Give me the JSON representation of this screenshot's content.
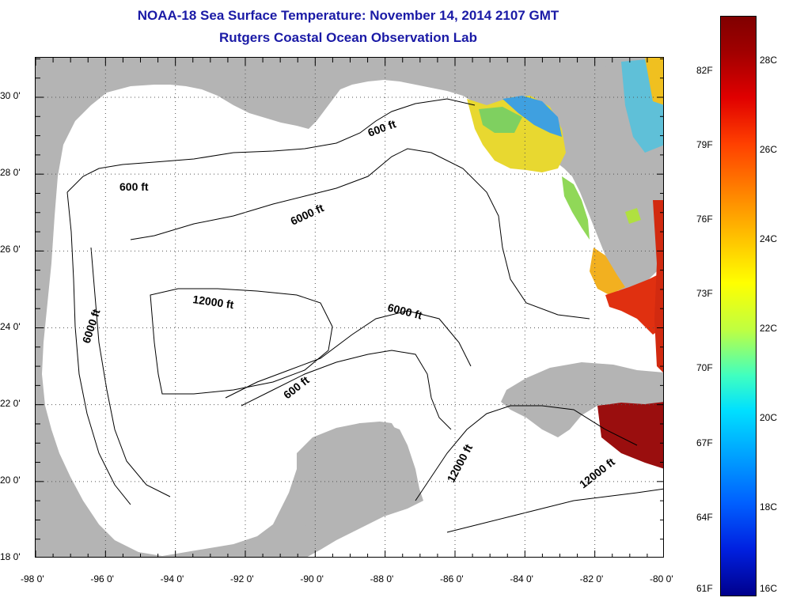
{
  "title": {
    "line1": "NOAA-18 Sea Surface Temperature:  November 14, 2014 2107 GMT",
    "line2": "Rutgers Coastal Ocean Observation Lab"
  },
  "map": {
    "lon_ticks": [
      "-98 0'",
      "-96 0'",
      "-94 0'",
      "-92 0'",
      "-90 0'",
      "-88 0'",
      "-86 0'",
      "-84 0'",
      "-82 0'",
      "-80 0'"
    ],
    "lat_ticks": [
      "30 0'",
      "28 0'",
      "26 0'",
      "24 0'",
      "22 0'",
      "20 0'",
      "18 0'"
    ],
    "contour_labels": [
      "600 ft",
      "600 ft",
      "6000 ft",
      "12000 ft",
      "6000 ft",
      "6000 ft",
      "600 ft",
      "12000 ft",
      "12000 ft"
    ],
    "land_color": "#b4b4b4",
    "grid": true
  },
  "colorbar": {
    "celsius": [
      "28C",
      "26C",
      "24C",
      "22C",
      "20C",
      "18C",
      "16C"
    ],
    "fahrenheit": [
      "82F",
      "79F",
      "76F",
      "73F",
      "70F",
      "67F",
      "64F",
      "61F"
    ],
    "min_c": 16,
    "max_c": 29
  }
}
